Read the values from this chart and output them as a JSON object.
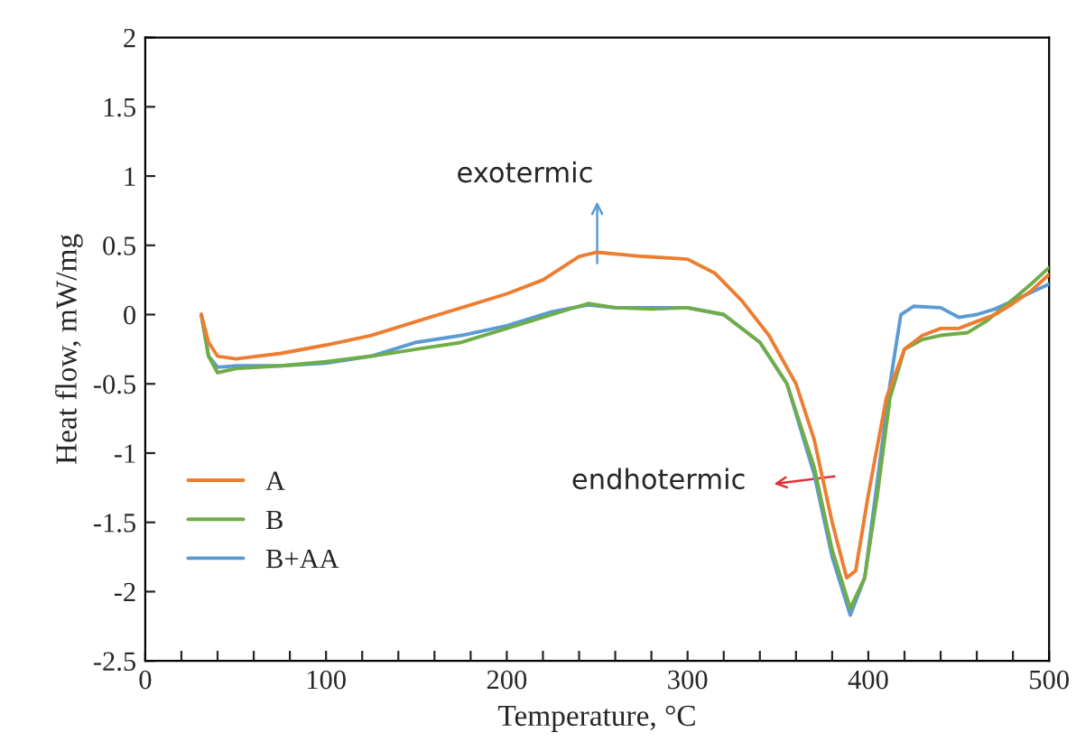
{
  "chart_data": {
    "type": "line",
    "xlabel": "Temperature, °C",
    "ylabel": "Heat flow, mW/mg",
    "xlim": [
      0,
      500
    ],
    "ylim": [
      -2.5,
      2
    ],
    "xticks": [
      0,
      {
        "value": 20,
        "label": null
      },
      {
        "value": 40,
        "label": null
      },
      {
        "value": 60,
        "label": null
      },
      {
        "value": 80,
        "label": null
      },
      100,
      {
        "value": 120,
        "label": null
      },
      {
        "value": 140,
        "label": null
      },
      {
        "value": 160,
        "label": null
      },
      {
        "value": 180,
        "label": null
      },
      200,
      {
        "value": 220,
        "label": null
      },
      {
        "value": 240,
        "label": null
      },
      {
        "value": 260,
        "label": null
      },
      {
        "value": 280,
        "label": null
      },
      300,
      {
        "value": 320,
        "label": null
      },
      {
        "value": 340,
        "label": null
      },
      {
        "value": 360,
        "label": null
      },
      {
        "value": 380,
        "label": null
      },
      400,
      {
        "value": 420,
        "label": null
      },
      {
        "value": 440,
        "label": null
      },
      {
        "value": 460,
        "label": null
      },
      {
        "value": 480,
        "label": null
      },
      500
    ],
    "yticks": [
      -2.5,
      -2,
      -1.5,
      -1,
      -0.5,
      0,
      0.5,
      1,
      1.5,
      2
    ],
    "grid": false,
    "legend": "bottom left",
    "annotations": [
      "exotermic",
      "endhotermic"
    ],
    "series": [
      {
        "name": "A",
        "color": "#ed7d31",
        "x": [
          31,
          35,
          40,
          50,
          75,
          100,
          125,
          150,
          175,
          200,
          220,
          240,
          250,
          275,
          300,
          315,
          330,
          345,
          360,
          370,
          380,
          388,
          393,
          400,
          410,
          420,
          430,
          440,
          450,
          460,
          470,
          480,
          490,
          500
        ],
        "values": [
          0,
          -0.2,
          -0.3,
          -0.32,
          -0.28,
          -0.22,
          -0.15,
          -0.05,
          0.05,
          0.15,
          0.25,
          0.42,
          0.45,
          0.42,
          0.4,
          0.3,
          0.1,
          -0.15,
          -0.5,
          -0.9,
          -1.5,
          -1.9,
          -1.85,
          -1.3,
          -0.6,
          -0.25,
          -0.15,
          -0.1,
          -0.1,
          -0.05,
          0.0,
          0.08,
          0.17,
          0.29
        ]
      },
      {
        "name": "B",
        "color": "#70ad47",
        "x": [
          31,
          35,
          40,
          50,
          75,
          100,
          125,
          150,
          175,
          200,
          225,
          245,
          260,
          280,
          300,
          320,
          340,
          355,
          370,
          380,
          390,
          398,
          405,
          412,
          420,
          430,
          440,
          455,
          465,
          480,
          490,
          500
        ],
        "values": [
          0,
          -0.3,
          -0.42,
          -0.39,
          -0.37,
          -0.34,
          -0.3,
          -0.25,
          -0.2,
          -0.1,
          0.0,
          0.08,
          0.05,
          0.04,
          0.05,
          0.0,
          -0.2,
          -0.5,
          -1.1,
          -1.7,
          -2.12,
          -1.9,
          -1.3,
          -0.6,
          -0.25,
          -0.18,
          -0.15,
          -0.13,
          -0.05,
          0.11,
          0.22,
          0.34
        ]
      },
      {
        "name": "B+AA",
        "color": "#5b9bd5",
        "x": [
          31,
          35,
          40,
          50,
          75,
          100,
          125,
          150,
          175,
          200,
          225,
          245,
          260,
          280,
          300,
          320,
          340,
          355,
          370,
          380,
          390,
          398,
          405,
          412,
          418,
          425,
          440,
          450,
          460,
          470,
          480,
          500
        ],
        "values": [
          0,
          -0.3,
          -0.38,
          -0.37,
          -0.37,
          -0.35,
          -0.3,
          -0.2,
          -0.15,
          -0.08,
          0.02,
          0.07,
          0.05,
          0.05,
          0.05,
          0.0,
          -0.2,
          -0.5,
          -1.15,
          -1.75,
          -2.17,
          -1.9,
          -1.2,
          -0.5,
          0.0,
          0.06,
          0.05,
          -0.02,
          0.0,
          0.04,
          0.1,
          0.22
        ]
      }
    ]
  }
}
